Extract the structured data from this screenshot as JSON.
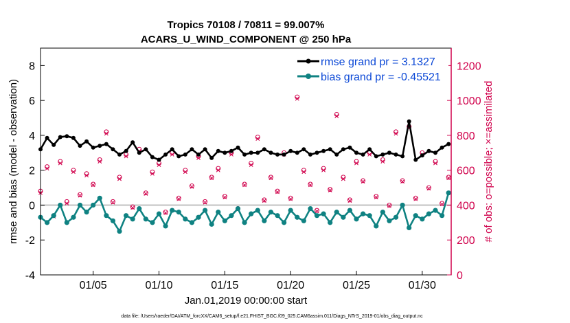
{
  "chart_data": {
    "type": "line",
    "title": "Tropics 70108 / 70811 = 99.007%",
    "subtitle": "ACARS_U_WIND_COMPONENT @ 250 hPa",
    "xlabel": "Jan.01,2019 00:00:00 start",
    "ylabel": "rmse and bias (model - observation)",
    "y2label": "# of obs: o=possible; ×=assimilated",
    "footnote": "data file: /Users/raeder/DAI/ATM_forcXX/CAM6_setup/f.e21.FHIST_BGC.f09_025.CAM6assim.011/Diags_NTrS_2019-01/obs_diag_output.nc",
    "xlim": [
      1,
      32.2
    ],
    "ylim": [
      -4,
      9
    ],
    "y2lim": [
      0,
      1300
    ],
    "x_ticks": [
      5,
      10,
      15,
      20,
      25,
      30
    ],
    "x_tick_labels": [
      "01/05",
      "01/10",
      "01/15",
      "01/20",
      "01/25",
      "01/30"
    ],
    "y_ticks": [
      -4,
      -2,
      0,
      2,
      4,
      6,
      8
    ],
    "y2_ticks": [
      0,
      200,
      400,
      600,
      800,
      1000,
      1200
    ],
    "colors": {
      "rmse": "#000000",
      "bias": "#0f8282",
      "obs": "#d0004b",
      "legend_text": "#0a47d6"
    },
    "legend_position": "top-right",
    "series": [
      {
        "name": "rmse grand pr = 3.1327",
        "axis": "left",
        "x": [
          1.0,
          1.5,
          2.0,
          2.5,
          3.0,
          3.5,
          4.0,
          4.5,
          5.0,
          5.5,
          6.0,
          6.5,
          7.0,
          7.5,
          8.0,
          8.5,
          9.0,
          9.5,
          10.0,
          10.5,
          11.0,
          11.5,
          12.0,
          12.5,
          13.0,
          13.5,
          14.0,
          14.5,
          15.0,
          15.5,
          16.0,
          16.5,
          17.0,
          17.5,
          18.0,
          18.5,
          19.0,
          19.5,
          20.0,
          20.5,
          21.0,
          21.5,
          22.0,
          22.5,
          23.0,
          23.5,
          24.0,
          24.5,
          25.0,
          25.5,
          26.0,
          26.5,
          27.0,
          27.5,
          28.0,
          28.5,
          29.0,
          29.5,
          30.0,
          30.5,
          31.0,
          31.5,
          32.0
        ],
        "values": [
          3.2,
          3.85,
          3.45,
          3.9,
          3.95,
          3.85,
          3.4,
          3.65,
          3.3,
          3.4,
          3.5,
          3.2,
          2.9,
          3.1,
          3.6,
          3.0,
          3.2,
          2.75,
          2.6,
          2.9,
          3.2,
          2.8,
          2.9,
          3.2,
          2.9,
          3.2,
          2.7,
          3.1,
          3.0,
          3.1,
          3.3,
          2.9,
          3.0,
          3.0,
          3.2,
          3.0,
          2.9,
          2.9,
          3.1,
          3.0,
          3.2,
          2.9,
          3.0,
          3.1,
          3.2,
          2.9,
          3.2,
          3.3,
          3.0,
          2.9,
          3.2,
          2.8,
          2.9,
          3.0,
          2.9,
          2.8,
          4.8,
          2.6,
          2.85,
          3.1,
          3.0,
          3.3,
          3.5
        ]
      },
      {
        "name": "bias grand pr = -0.45521",
        "axis": "left",
        "x": [
          1.0,
          1.5,
          2.0,
          2.5,
          3.0,
          3.5,
          4.0,
          4.5,
          5.0,
          5.5,
          6.0,
          6.5,
          7.0,
          7.5,
          8.0,
          8.5,
          9.0,
          9.5,
          10.0,
          10.5,
          11.0,
          11.5,
          12.0,
          12.5,
          13.0,
          13.5,
          14.0,
          14.5,
          15.0,
          15.5,
          16.0,
          16.5,
          17.0,
          17.5,
          18.0,
          18.5,
          19.0,
          19.5,
          20.0,
          20.5,
          21.0,
          21.5,
          22.0,
          22.5,
          23.0,
          23.5,
          24.0,
          24.5,
          25.0,
          25.5,
          26.0,
          26.5,
          27.0,
          27.5,
          28.0,
          28.5,
          29.0,
          29.5,
          30.0,
          30.5,
          31.0,
          31.5,
          32.0
        ],
        "values": [
          -0.7,
          -1.0,
          -0.6,
          0.0,
          -1.0,
          -0.7,
          0.0,
          -0.4,
          0.0,
          0.4,
          -0.6,
          -0.9,
          -1.5,
          -0.6,
          -0.8,
          -0.2,
          -0.8,
          -1.0,
          -0.5,
          -1.2,
          -0.3,
          -0.4,
          -0.8,
          -1.0,
          -0.7,
          -0.3,
          -1.1,
          -0.4,
          -0.9,
          -0.6,
          -0.2,
          -1.0,
          -0.5,
          -0.3,
          -0.9,
          -0.4,
          -0.6,
          -1.0,
          -0.3,
          -0.7,
          -0.9,
          -0.2,
          -0.6,
          -0.5,
          -1.0,
          -0.4,
          -0.7,
          -0.3,
          -0.8,
          -0.5,
          -0.6,
          -1.2,
          -0.4,
          -0.9,
          -0.7,
          0.0,
          -1.3,
          -0.6,
          -0.8,
          -0.5,
          -0.3,
          -0.6,
          0.7
        ]
      },
      {
        "name": "obs possible",
        "axis": "right",
        "marker": "o",
        "x": [
          1.0,
          1.5,
          2.0,
          2.5,
          3.0,
          3.5,
          4.0,
          4.5,
          5.0,
          5.5,
          6.0,
          6.5,
          7.0,
          7.5,
          8.0,
          8.5,
          9.0,
          9.5,
          10.0,
          10.5,
          11.0,
          11.5,
          12.0,
          12.5,
          13.0,
          13.5,
          14.0,
          14.5,
          15.0,
          15.5,
          16.0,
          16.5,
          17.0,
          17.5,
          18.0,
          18.5,
          19.0,
          19.5,
          20.0,
          20.5,
          21.0,
          21.5,
          22.0,
          22.5,
          23.0,
          23.5,
          24.0,
          24.5,
          25.0,
          25.5,
          26.0,
          26.5,
          27.0,
          27.5,
          28.0,
          28.5,
          29.0,
          29.5,
          30.0,
          30.5,
          31.0,
          31.5,
          32.0
        ],
        "values": [
          480,
          620,
          340,
          650,
          420,
          600,
          460,
          580,
          520,
          660,
          820,
          420,
          560,
          690,
          390,
          720,
          470,
          590,
          640,
          360,
          700,
          440,
          600,
          510,
          680,
          420,
          560,
          610,
          450,
          700,
          380,
          520,
          640,
          790,
          430,
          560,
          480,
          700,
          440,
          1020,
          600,
          520,
          370,
          610,
          490,
          920,
          560,
          430,
          650,
          540,
          700,
          450,
          660,
          400,
          820,
          540,
          850,
          440,
          700,
          500,
          650,
          410,
          560
        ]
      },
      {
        "name": "obs assimilated",
        "axis": "right",
        "marker": "x",
        "x": [
          1.0,
          1.5,
          2.0,
          2.5,
          3.0,
          3.5,
          4.0,
          4.5,
          5.0,
          5.5,
          6.0,
          6.5,
          7.0,
          7.5,
          8.0,
          8.5,
          9.0,
          9.5,
          10.0,
          10.5,
          11.0,
          11.5,
          12.0,
          12.5,
          13.0,
          13.5,
          14.0,
          14.5,
          15.0,
          15.5,
          16.0,
          16.5,
          17.0,
          17.5,
          18.0,
          18.5,
          19.0,
          19.5,
          20.0,
          20.5,
          21.0,
          21.5,
          22.0,
          22.5,
          23.0,
          23.5,
          24.0,
          24.5,
          25.0,
          25.5,
          26.0,
          26.5,
          27.0,
          27.5,
          28.0,
          28.5,
          29.0,
          29.5,
          30.0,
          30.5,
          31.0,
          31.5,
          32.0
        ],
        "values": [
          470,
          610,
          335,
          640,
          410,
          590,
          455,
          570,
          515,
          650,
          810,
          415,
          550,
          680,
          385,
          710,
          465,
          580,
          630,
          355,
          690,
          435,
          590,
          505,
          670,
          415,
          555,
          600,
          445,
          690,
          375,
          515,
          630,
          780,
          425,
          555,
          475,
          690,
          435,
          1010,
          590,
          515,
          365,
          600,
          485,
          910,
          550,
          425,
          640,
          535,
          690,
          445,
          650,
          395,
          810,
          535,
          845,
          435,
          690,
          495,
          640,
          405,
          555
        ]
      }
    ]
  }
}
